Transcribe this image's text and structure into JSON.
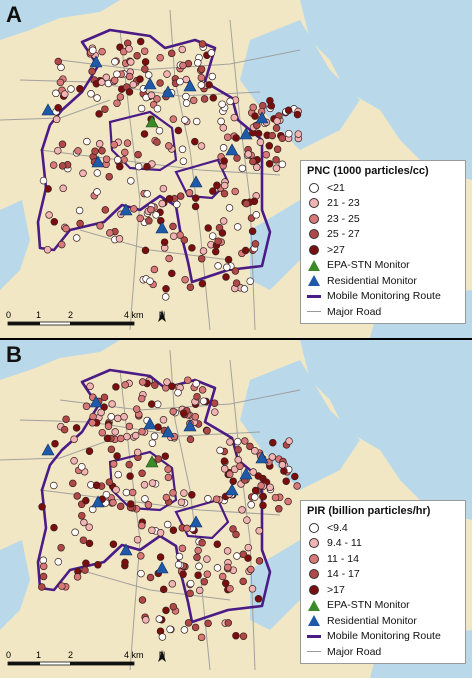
{
  "panels": [
    {
      "letter": "A",
      "legend_title": "PNC (1000 particles/cc)",
      "classes": [
        {
          "label": "<21",
          "color": "#ffffff"
        },
        {
          "label": "21 - 23",
          "color": "#f0b4b4"
        },
        {
          "label": "23 - 25",
          "color": "#d87878"
        },
        {
          "label": "25 - 27",
          "color": "#b04848"
        },
        {
          "label": ">27",
          "color": "#7a0d0d"
        }
      ]
    },
    {
      "letter": "B",
      "legend_title": "PIR (billion particles/hr)",
      "classes": [
        {
          "label": "<9.4",
          "color": "#ffffff"
        },
        {
          "label": "9.4 - 11",
          "color": "#f0b4b4"
        },
        {
          "label": "11 - 14",
          "color": "#d87878"
        },
        {
          "label": "14 - 17",
          "color": "#b04848"
        },
        {
          "label": ">17",
          "color": "#7a0d0d"
        }
      ]
    }
  ],
  "legend_common": {
    "epa": "EPA-STN Monitor",
    "residential": "Residential Monitor",
    "route": "Mobile Monitoring Route",
    "road": "Major Road"
  },
  "scale": {
    "ticks": [
      "0",
      "1",
      "2",
      "4 km"
    ]
  },
  "north_label": "N",
  "colors": {
    "land": "#f2e7c4",
    "water": "#b9d9ea",
    "route": "#4b1b86",
    "road": "#9a9a9a",
    "epa_monitor": "#3a8a2a",
    "residential_monitor": "#1f5aa8"
  }
}
